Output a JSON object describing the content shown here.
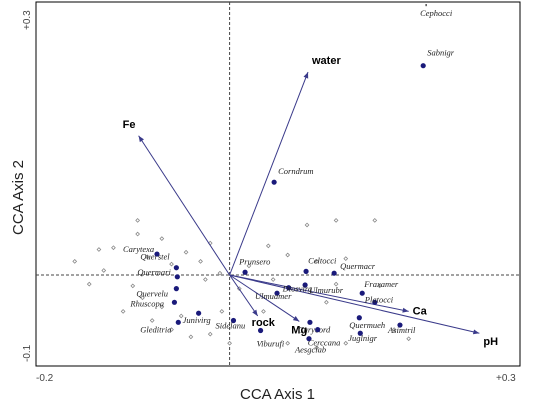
{
  "chart_data": {
    "type": "scatter",
    "title": "",
    "xlabel": "CCA Axis 1",
    "ylabel": "CCA Axis 2",
    "xlim": [
      -0.2,
      0.3
    ],
    "ylim": [
      -0.1,
      0.3
    ],
    "x_ticks": [
      {
        "value": -0.2,
        "label": "-0.2"
      },
      {
        "value": 0.3,
        "label": "+0.3"
      }
    ],
    "y_ticks": [
      {
        "value": -0.1,
        "label": "-0.1"
      },
      {
        "value": 0.3,
        "label": "+0.3"
      }
    ],
    "zero_lines": true,
    "colors": {
      "species": "#1a1a7a",
      "sites": "#888888",
      "arrows": "#3a3a8a",
      "axes": "#000000"
    },
    "environment_vectors": [
      {
        "name": "water",
        "x": 0.081,
        "y": 0.223
      },
      {
        "name": "Fe",
        "x": -0.094,
        "y": 0.153
      },
      {
        "name": "Ca",
        "x": 0.185,
        "y": -0.04
      },
      {
        "name": "pH",
        "x": 0.258,
        "y": -0.064
      },
      {
        "name": "rock",
        "x": 0.029,
        "y": -0.045
      },
      {
        "name": "Mg",
        "x": 0.072,
        "y": -0.051
      }
    ],
    "species": [
      {
        "name": "Cephocci",
        "x": 0.203,
        "y": 0.302
      },
      {
        "name": "Sabnigr",
        "x": 0.2,
        "y": 0.23
      },
      {
        "name": "Corndrum",
        "x": 0.046,
        "y": 0.102
      },
      {
        "name": "Prunsero",
        "x": 0.016,
        "y": 0.003
      },
      {
        "name": "Celtocci",
        "x": 0.079,
        "y": 0.004
      },
      {
        "name": "Quermacr",
        "x": 0.108,
        "y": 0.002
      },
      {
        "name": "Ulmurubr",
        "x": 0.078,
        "y": -0.011
      },
      {
        "name": "Diosvirg",
        "x": 0.061,
        "y": -0.014
      },
      {
        "name": "Ulmuamer",
        "x": 0.049,
        "y": -0.02
      },
      {
        "name": "Fraxamer",
        "x": 0.137,
        "y": -0.02
      },
      {
        "name": "Platocci",
        "x": 0.15,
        "y": -0.03
      },
      {
        "name": "Quermueh",
        "x": 0.134,
        "y": -0.047
      },
      {
        "name": "Carycord",
        "x": 0.083,
        "y": -0.052
      },
      {
        "name": "Cerccana",
        "x": 0.091,
        "y": -0.06
      },
      {
        "name": "Juglnigr",
        "x": 0.135,
        "y": -0.064
      },
      {
        "name": "Aesgclab",
        "x": 0.082,
        "y": -0.07
      },
      {
        "name": "Asimtril",
        "x": 0.176,
        "y": -0.055
      },
      {
        "name": "Viburufi",
        "x": 0.032,
        "y": -0.061
      },
      {
        "name": "Sidelanu",
        "x": 0.004,
        "y": -0.05
      },
      {
        "name": "Junivirg",
        "x": -0.032,
        "y": -0.042
      },
      {
        "name": "Rhuscopa",
        "x": -0.057,
        "y": -0.03
      },
      {
        "name": "Gleditria",
        "x": -0.053,
        "y": -0.052
      },
      {
        "name": "Quervelu",
        "x": -0.055,
        "y": -0.015
      },
      {
        "name": "Quermari",
        "x": -0.054,
        "y": -0.002
      },
      {
        "name": "Querstel",
        "x": -0.055,
        "y": 0.008
      },
      {
        "name": "Carytexa",
        "x": -0.075,
        "y": 0.023
      }
    ],
    "sites": [
      [
        -0.16,
        0.015
      ],
      [
        -0.13,
        0.005
      ],
      [
        -0.145,
        -0.01
      ],
      [
        -0.12,
        0.03
      ],
      [
        -0.095,
        0.06
      ],
      [
        -0.095,
        0.045
      ],
      [
        -0.085,
        0.02
      ],
      [
        -0.07,
        0.04
      ],
      [
        -0.06,
        0.012
      ],
      [
        -0.045,
        0.025
      ],
      [
        -0.03,
        0.015
      ],
      [
        -0.02,
        0.035
      ],
      [
        -0.01,
        0.002
      ],
      [
        -0.025,
        -0.005
      ],
      [
        -0.1,
        -0.012
      ],
      [
        -0.09,
        -0.025
      ],
      [
        -0.07,
        -0.035
      ],
      [
        -0.05,
        -0.045
      ],
      [
        -0.08,
        -0.05
      ],
      [
        -0.06,
        -0.06
      ],
      [
        -0.04,
        -0.068
      ],
      [
        -0.02,
        -0.065
      ],
      [
        -0.008,
        -0.04
      ],
      [
        0.01,
        -0.015
      ],
      [
        0.02,
        0.01
      ],
      [
        0.04,
        0.032
      ],
      [
        0.06,
        0.022
      ],
      [
        0.09,
        0.015
      ],
      [
        0.11,
        0.06
      ],
      [
        0.15,
        0.06
      ],
      [
        0.11,
        -0.01
      ],
      [
        0.155,
        -0.012
      ],
      [
        0.17,
        -0.06
      ],
      [
        0.12,
        -0.075
      ],
      [
        0.09,
        -0.08
      ],
      [
        0.06,
        -0.075
      ],
      [
        0.035,
        -0.04
      ],
      [
        0.0,
        -0.075
      ],
      [
        -0.11,
        -0.04
      ],
      [
        -0.135,
        0.028
      ],
      [
        0.12,
        0.018
      ],
      [
        0.08,
        0.055
      ],
      [
        0.185,
        -0.07
      ],
      [
        0.1,
        -0.03
      ],
      [
        0.045,
        -0.005
      ]
    ]
  }
}
